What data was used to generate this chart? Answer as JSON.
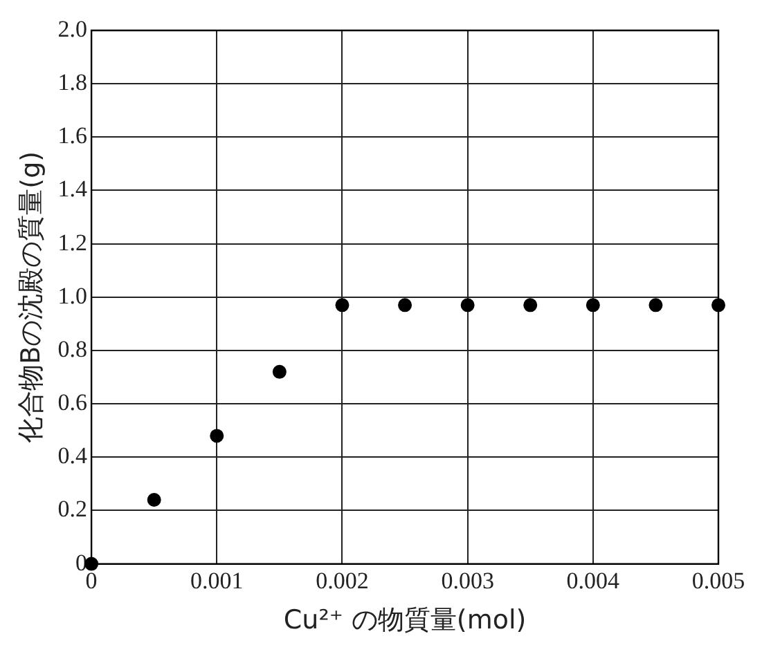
{
  "chart_data": {
    "type": "scatter",
    "xlabel": "Cu²⁺ の物質量(mol)",
    "ylabel": "化合物Bの沈殿の質量(g)",
    "x": [
      0,
      0.0005,
      0.001,
      0.0015,
      0.002,
      0.0025,
      0.003,
      0.0035,
      0.004,
      0.0045,
      0.005
    ],
    "series": [
      {
        "color": "#000000",
        "values": [
          0,
          0.24,
          0.48,
          0.72,
          0.97,
          0.97,
          0.97,
          0.97,
          0.97,
          0.97,
          0.97
        ]
      }
    ],
    "xlim": [
      0,
      0.005
    ],
    "xticks": [
      0,
      0.001,
      0.002,
      0.003,
      0.004,
      0.005
    ],
    "ylim": [
      0,
      2
    ],
    "yticks": [
      0,
      0.2,
      0.4,
      0.6,
      0.8,
      {
        "value": 1,
        "label": "1.0"
      },
      1.2,
      1.4,
      1.6,
      1.8,
      {
        "value": 2,
        "label": "2.0"
      }
    ],
    "grid": true,
    "legend": false,
    "marker": "circle"
  }
}
